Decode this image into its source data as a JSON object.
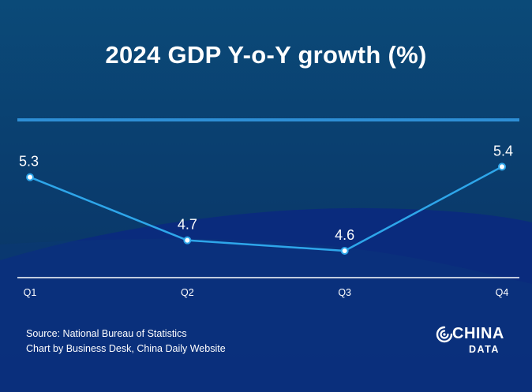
{
  "title": "2024 GDP Y-o-Y growth (%)",
  "source_line": "Source: National Bureau of Statistics",
  "credit_line": "Chart by Business Desk, China Daily Website",
  "logo": {
    "word_top": "CHINA",
    "word_bottom": "DATA",
    "icon": "signal-swirl-icon"
  },
  "colors": {
    "background_top": "#0b4a78",
    "background_bottom": "#0a2f63",
    "wave": "#0a2a80",
    "line": "#2ea6ea",
    "accent_rule": "#2e8fd6",
    "text": "#ffffff"
  },
  "chart_data": {
    "type": "line",
    "categories": [
      "Q1",
      "Q2",
      "Q3",
      "Q4"
    ],
    "values": [
      5.3,
      4.7,
      4.6,
      5.4
    ],
    "data_labels": [
      "5.3",
      "4.7",
      "4.6",
      "5.4"
    ],
    "title": "2024 GDP Y-o-Y growth (%)",
    "xlabel": "",
    "ylabel": "",
    "ylim": [
      4.0,
      5.5
    ],
    "grid": false,
    "legend": "none"
  }
}
